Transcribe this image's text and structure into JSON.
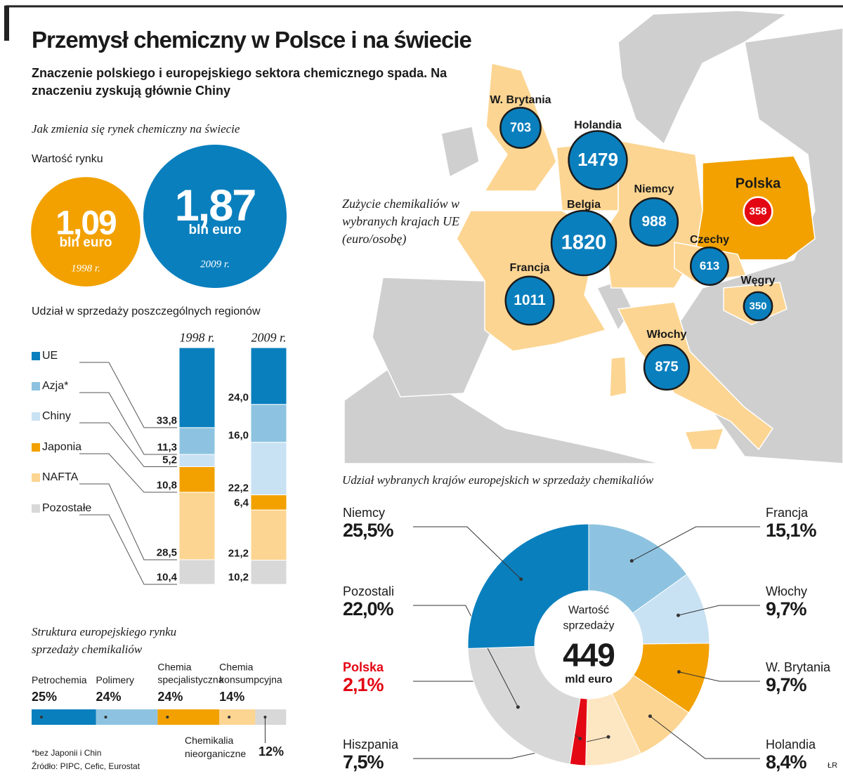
{
  "title": "Przemysł chemiczny w Polsce i na świecie",
  "subtitle": "Znaczenie polskiego i europejskiego sektora chemicznego spada. Na znaczeniu zyskują głównie Chiny",
  "chart_data": [
    {
      "type": "bubble",
      "title": "Jak zmienia się rynek chemiczny na świecie",
      "label": "Wartość rynku",
      "unit": "bln euro",
      "categories": [
        "1998 r.",
        "2009 r."
      ],
      "values": [
        1.09,
        1.87
      ],
      "value_labels": [
        "1,09",
        "1,87"
      ],
      "colors": [
        "#f2a100",
        "#0a7fbd"
      ]
    },
    {
      "type": "stacked_bar",
      "title": "Udział w sprzedaży poszczególnych regionów",
      "categories": [
        "1998 r.",
        "2009 r."
      ],
      "series": [
        {
          "name": "UE",
          "color": "#0a7fbd",
          "values": [
            33.8,
            24.0
          ],
          "value_labels": [
            "33,8",
            "24,0"
          ]
        },
        {
          "name": "Azja*",
          "color": "#8dc3e0",
          "values": [
            11.3,
            16.0
          ],
          "value_labels": [
            "11,3",
            "16,0"
          ]
        },
        {
          "name": "Chiny",
          "color": "#c9e2f3",
          "values": [
            5.2,
            22.2
          ],
          "value_labels": [
            "5,2",
            "22,2"
          ]
        },
        {
          "name": "Japonia",
          "color": "#f2a100",
          "values": [
            10.8,
            6.4
          ],
          "value_labels": [
            "10,8",
            "6,4"
          ]
        },
        {
          "name": "NAFTA",
          "color": "#fcd592",
          "values": [
            28.5,
            21.2
          ],
          "value_labels": [
            "28,5",
            "21,2"
          ]
        },
        {
          "name": "Pozostałe",
          "color": "#d8d8d8",
          "values": [
            10.4,
            10.2
          ],
          "value_labels": [
            "10,4",
            "10,2"
          ]
        }
      ]
    },
    {
      "type": "stacked_hbar",
      "title": "Struktura europejskiego rynku sprzedaży chemikaliów",
      "categories": [
        "Petrochemia",
        "Polimery",
        "Chemia specjalistyczna",
        "Chemia konsumpcyjna",
        "Chemikalia nieorganiczne"
      ],
      "values": [
        25,
        24,
        24,
        14,
        12
      ],
      "value_labels": [
        "25%",
        "24%",
        "24%",
        "14%",
        "12%"
      ],
      "colors": [
        "#0a7fbd",
        "#8dc3e0",
        "#f2a100",
        "#fcd592",
        "#d8d8d8"
      ]
    },
    {
      "type": "map_bubble",
      "title": "Zużycie chemikaliów w wybranych krajach UE (euro/osobę)",
      "categories": [
        "W. Brytania",
        "Holandia",
        "Belgia",
        "Niemcy",
        "Polska",
        "Francja",
        "Czechy",
        "Węgry",
        "Włochy"
      ],
      "values": [
        703,
        1479,
        1820,
        988,
        358,
        1011,
        613,
        350,
        875
      ],
      "colors": [
        "#0a7fbd",
        "#0a7fbd",
        "#0a7fbd",
        "#0a7fbd",
        "#e30613",
        "#0a7fbd",
        "#0a7fbd",
        "#0a7fbd",
        "#0a7fbd"
      ]
    },
    {
      "type": "donut",
      "title": "Udział wybranych krajów europejskich w sprzedaży chemikaliów",
      "center_label": "Wartość sprzedaży",
      "total": 449,
      "total_unit": "mld euro",
      "categories": [
        "Francja",
        "Włochy",
        "W. Brytania",
        "Holandia",
        "Hiszpania",
        "Polska",
        "Pozostali",
        "Niemcy"
      ],
      "values": [
        15.1,
        9.7,
        9.7,
        8.4,
        7.5,
        2.1,
        22.0,
        25.5
      ],
      "value_labels": [
        "15,1%",
        "9,7%",
        "9,7%",
        "8,4%",
        "7,5%",
        "2,1%",
        "22,0%",
        "25,5%"
      ],
      "colors": [
        "#8dc3e0",
        "#c9e2f3",
        "#f2a100",
        "#fcd592",
        "#fde6c2",
        "#e30613",
        "#d8d8d8",
        "#0a7fbd"
      ]
    }
  ],
  "footnote": "*bez Japonii i Chin",
  "source": "Źródło: PIPC, Cefic, Eurostat",
  "author": "ŁR"
}
